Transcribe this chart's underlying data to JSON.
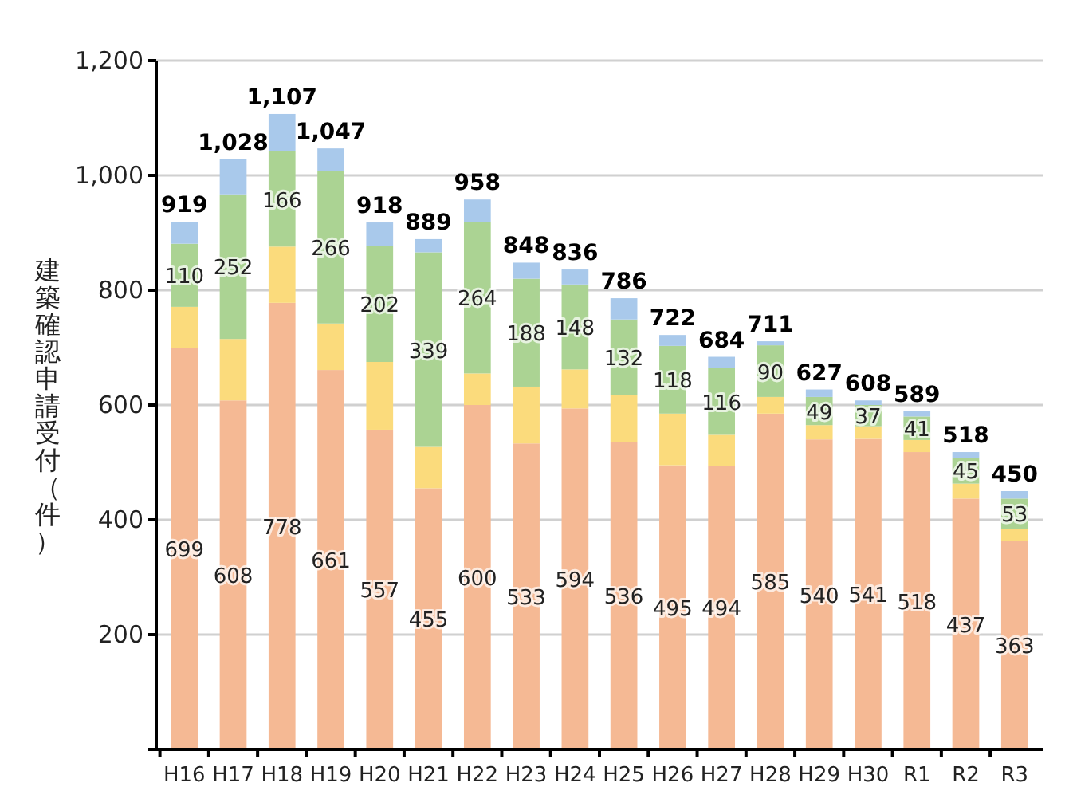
{
  "chart_data": {
    "type": "bar",
    "stacked": true,
    "ylabel": "建築確認申請受付（件）",
    "categories": [
      "H16",
      "H17",
      "H18",
      "H19",
      "H20",
      "H21",
      "H22",
      "H23",
      "H24",
      "H25",
      "H26",
      "H27",
      "H28",
      "H29",
      "H30",
      "R1",
      "R2",
      "R3"
    ],
    "series": [
      {
        "color": "#f5b994",
        "values": [
          699,
          608,
          778,
          661,
          557,
          455,
          600,
          533,
          594,
          536,
          495,
          494,
          585,
          540,
          541,
          518,
          437,
          363
        ],
        "value_labels": [
          "699",
          "608",
          "778",
          "661",
          "557",
          "455",
          "600",
          "533",
          "594",
          "536",
          "495",
          "494",
          "585",
          "540",
          "541",
          "518",
          "437",
          "363"
        ]
      },
      {
        "color": "#fbdb7c",
        "values": [
          72,
          107,
          98,
          81,
          118,
          72,
          55,
          99,
          68,
          81,
          90,
          54,
          29,
          25,
          22,
          21,
          26,
          21
        ]
      },
      {
        "color": "#abd393",
        "values": [
          110,
          252,
          166,
          266,
          202,
          339,
          264,
          188,
          148,
          132,
          118,
          116,
          90,
          49,
          37,
          41,
          45,
          53
        ],
        "value_labels": [
          "110",
          "252",
          "166",
          "266",
          "202",
          "339",
          "264",
          "188",
          "148",
          "132",
          "118",
          "116",
          "90",
          "49",
          "37",
          "41",
          "45",
          "53"
        ]
      },
      {
        "color": "#a9c9eb",
        "values": [
          38,
          61,
          65,
          39,
          41,
          23,
          39,
          28,
          26,
          37,
          19,
          20,
          7,
          13,
          8,
          9,
          10,
          13
        ]
      }
    ],
    "totals": [
      "919",
      "1,028",
      "1,107",
      "1,047",
      "918",
      "889",
      "958",
      "848",
      "836",
      "786",
      "722",
      "684",
      "711",
      "627",
      "608",
      "589",
      "518",
      "450"
    ],
    "ylim": [
      0,
      1200
    ],
    "yticks": [
      {
        "value": 0,
        "label": null
      },
      200,
      400,
      600,
      800,
      {
        "value": 1000,
        "label": "1,000"
      },
      {
        "value": 1200,
        "label": "1,200"
      }
    ],
    "grid": "y"
  }
}
